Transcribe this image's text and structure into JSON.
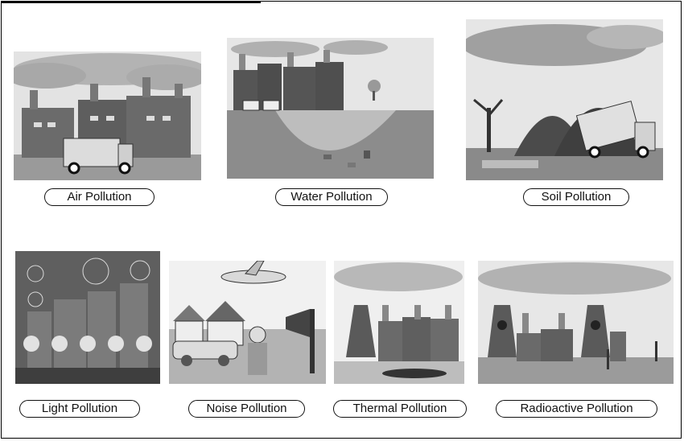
{
  "figure": {
    "labels": {
      "air": "Air Pollution",
      "water": "Water Pollution",
      "soil": "Soil Pollution",
      "light": "Light Pollution",
      "noise": "Noise Pollution",
      "thermal": "Thermal Pollution",
      "radioactive": "Radioactive Pollution"
    }
  }
}
